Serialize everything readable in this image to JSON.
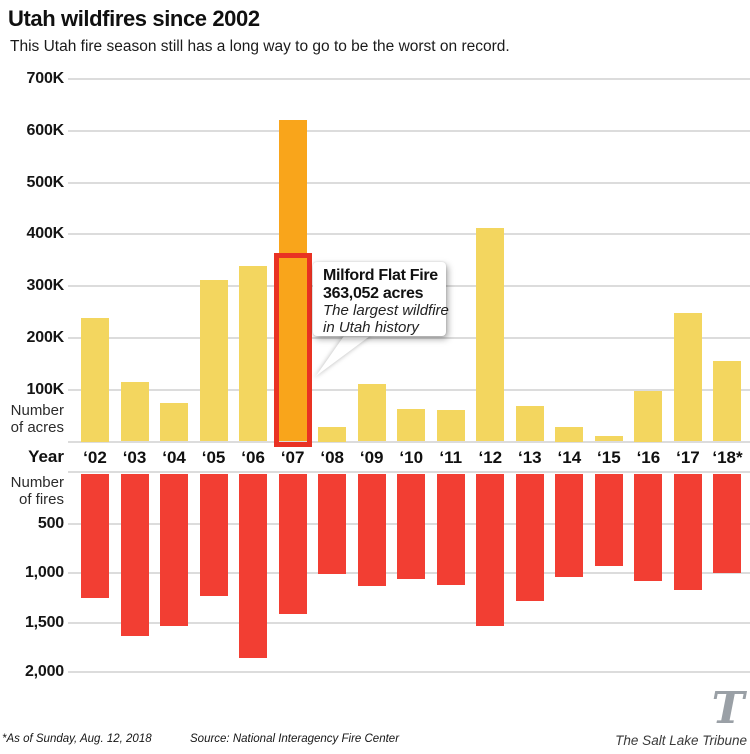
{
  "header": {
    "title": "Utah wildfires since 2002",
    "subtitle": "This Utah fire season still has a long way to go to be the worst on record."
  },
  "axes": {
    "acres_axis_label": [
      "Number",
      "of acres"
    ],
    "year_axis_label": "Year",
    "fires_axis_label": [
      "Number",
      "of fires"
    ],
    "acres_ticks": [
      "700K",
      "600K",
      "500K",
      "400K",
      "300K",
      "200K",
      "100K"
    ],
    "fires_ticks": [
      "500",
      "1,000",
      "1,500",
      "2,000"
    ]
  },
  "colors": {
    "bar_yellow": "#F3D65F",
    "bar_orange": "#F9A51B",
    "bar_red": "#F23E33",
    "highlight_outline": "#E93223",
    "gridline": "#DCDCDC"
  },
  "chart_data": {
    "type": "bar",
    "title": "Utah wildfires since 2002",
    "xlabel": "Year",
    "grid": true,
    "categories": [
      "‘02",
      "‘03",
      "‘04",
      "‘05",
      "‘06",
      "‘07",
      "‘08",
      "‘09",
      "‘10",
      "‘11",
      "‘12",
      "‘13",
      "‘14",
      "‘15",
      "‘16",
      "‘17",
      "‘18*"
    ],
    "series": [
      {
        "name": "Number of acres",
        "direction": "up",
        "ylim": [
          0,
          700000
        ],
        "tick_step": 100000,
        "color_key": "bar_yellow",
        "highlight": {
          "index": 5,
          "color_key": "bar_orange"
        },
        "values": [
          238000,
          115000,
          75000,
          312000,
          338000,
          620000,
          28000,
          111000,
          62000,
          60000,
          412000,
          68000,
          28000,
          10000,
          98000,
          248000,
          155000
        ]
      },
      {
        "name": "Number of fires",
        "direction": "down",
        "ylim": [
          0,
          2000
        ],
        "tick_step": 500,
        "color_key": "bar_red",
        "values": [
          1250,
          1630,
          1530,
          1230,
          1850,
          1410,
          1010,
          1130,
          1060,
          1120,
          1530,
          1280,
          1040,
          930,
          1080,
          1170,
          1000
        ]
      }
    ],
    "annotation": {
      "title": "Milford Flat Fire",
      "acres_text": "363,052 acres",
      "acres_value": 363052,
      "note": [
        "The largest wildfire",
        "in Utah history"
      ],
      "target_year": "‘07"
    }
  },
  "footer": {
    "as_of": "*As of Sunday, Aug. 12, 2018",
    "source": "Source: National Interagency Fire Center",
    "credit": "The Salt Lake Tribune",
    "logo_letter": "T"
  }
}
